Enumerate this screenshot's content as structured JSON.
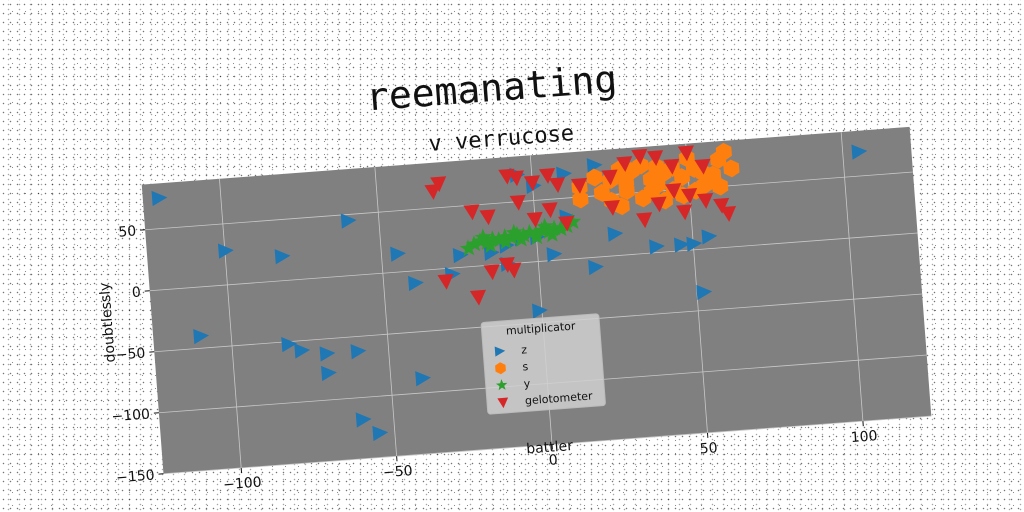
{
  "chart_data": {
    "type": "scatter",
    "title": "reemanating",
    "subtitle": "v verrucose",
    "xlabel": "battler",
    "ylabel": "doubtlessly",
    "xlim": [
      -125,
      122
    ],
    "ylim": [
      -150,
      87
    ],
    "xticks": [
      -100,
      -50,
      0,
      50,
      100
    ],
    "yticks": [
      -150,
      -100,
      -50,
      0,
      50
    ],
    "grid": true,
    "plot_background": "#808080",
    "legend": {
      "title": "multiplicator",
      "placement": "lower-center"
    },
    "series": [
      {
        "name": "z",
        "marker": "triangle-right",
        "color": "#1f77b4",
        "points": [
          [
            -120,
            75
          ],
          [
            105,
            70
          ],
          [
            -100,
            28
          ],
          [
            -82,
            20
          ],
          [
            -60,
            45
          ],
          [
            -45,
            15
          ],
          [
            -40,
            -10
          ],
          [
            -28,
            -5
          ],
          [
            -25,
            10
          ],
          [
            -15,
            10
          ],
          [
            -10,
            15
          ],
          [
            -5,
            20
          ],
          [
            0,
            20
          ],
          [
            5,
            5
          ],
          [
            10,
            70
          ],
          [
            20,
            75
          ],
          [
            -110,
            -40
          ],
          [
            -82,
            -52
          ],
          [
            -78,
            -58
          ],
          [
            -70,
            -62
          ],
          [
            -60,
            -62
          ],
          [
            -70,
            -78
          ],
          [
            -40,
            -88
          ],
          [
            -60,
            -118
          ],
          [
            -55,
            -130
          ],
          [
            18,
            -8
          ],
          [
            25,
            18
          ],
          [
            38,
            5
          ],
          [
            46,
            5
          ],
          [
            50,
            5
          ],
          [
            55,
            10
          ],
          [
            52,
            -35
          ],
          [
            -5,
            72
          ],
          [
            0,
            62
          ],
          [
            -1,
            -40
          ],
          [
            -10,
            0
          ],
          [
            10,
            35
          ]
        ]
      },
      {
        "name": "s",
        "marker": "hexagon",
        "color": "#ff7f0e",
        "points": [
          [
            20,
            65
          ],
          [
            25,
            62
          ],
          [
            28,
            70
          ],
          [
            30,
            60
          ],
          [
            32,
            68
          ],
          [
            35,
            72
          ],
          [
            38,
            60
          ],
          [
            40,
            70
          ],
          [
            42,
            64
          ],
          [
            45,
            68
          ],
          [
            48,
            60
          ],
          [
            50,
            75
          ],
          [
            52,
            66
          ],
          [
            55,
            62
          ],
          [
            58,
            55
          ],
          [
            60,
            72
          ],
          [
            62,
            78
          ],
          [
            45,
            50
          ],
          [
            48,
            45
          ],
          [
            52,
            48
          ],
          [
            55,
            52
          ],
          [
            60,
            50
          ],
          [
            38,
            50
          ],
          [
            30,
            52
          ],
          [
            22,
            52
          ],
          [
            15,
            58
          ],
          [
            25,
            45
          ],
          [
            35,
            45
          ],
          [
            40,
            55
          ],
          [
            58,
            60
          ],
          [
            64,
            64
          ],
          [
            15,
            48
          ],
          [
            28,
            40
          ],
          [
            42,
            42
          ]
        ]
      },
      {
        "name": "y",
        "marker": "star",
        "color": "#2ca02c",
        "points": [
          [
            -20,
            18
          ],
          [
            -18,
            20
          ],
          [
            -16,
            19
          ],
          [
            -14,
            21
          ],
          [
            -12,
            20
          ],
          [
            -10,
            22
          ],
          [
            -8,
            21
          ],
          [
            -6,
            23
          ],
          [
            -4,
            22
          ],
          [
            -2,
            24
          ],
          [
            0,
            23
          ],
          [
            2,
            25
          ],
          [
            4,
            24
          ],
          [
            6,
            26
          ],
          [
            8,
            25
          ],
          [
            10,
            27
          ],
          [
            -15,
            16
          ],
          [
            -10,
            18
          ],
          [
            -5,
            19
          ],
          [
            0,
            20
          ],
          [
            5,
            21
          ],
          [
            -22,
            15
          ],
          [
            -17,
            23
          ],
          [
            -7,
            25
          ],
          [
            3,
            28
          ],
          [
            12,
            30
          ]
        ]
      },
      {
        "name": "gelotometer",
        "marker": "triangle-down",
        "color": "#d62728",
        "points": [
          [
            -30,
            70
          ],
          [
            -32,
            64
          ],
          [
            -5,
            70
          ],
          [
            -8,
            72
          ],
          [
            0,
            65
          ],
          [
            5,
            70
          ],
          [
            8,
            62
          ],
          [
            15,
            60
          ],
          [
            25,
            65
          ],
          [
            30,
            75
          ],
          [
            35,
            80
          ],
          [
            40,
            78
          ],
          [
            45,
            70
          ],
          [
            50,
            80
          ],
          [
            55,
            68
          ],
          [
            45,
            50
          ],
          [
            50,
            45
          ],
          [
            55,
            40
          ],
          [
            60,
            35
          ],
          [
            62,
            28
          ],
          [
            35,
            28
          ],
          [
            25,
            40
          ],
          [
            10,
            30
          ],
          [
            -20,
            45
          ],
          [
            -15,
            40
          ],
          [
            -10,
            0
          ],
          [
            -15,
            -5
          ],
          [
            -8,
            -5
          ],
          [
            -30,
            -10
          ],
          [
            -20,
            -25
          ],
          [
            -5,
            50
          ],
          [
            0,
            35
          ],
          [
            5,
            42
          ],
          [
            40,
            40
          ],
          [
            48,
            32
          ]
        ]
      }
    ]
  }
}
